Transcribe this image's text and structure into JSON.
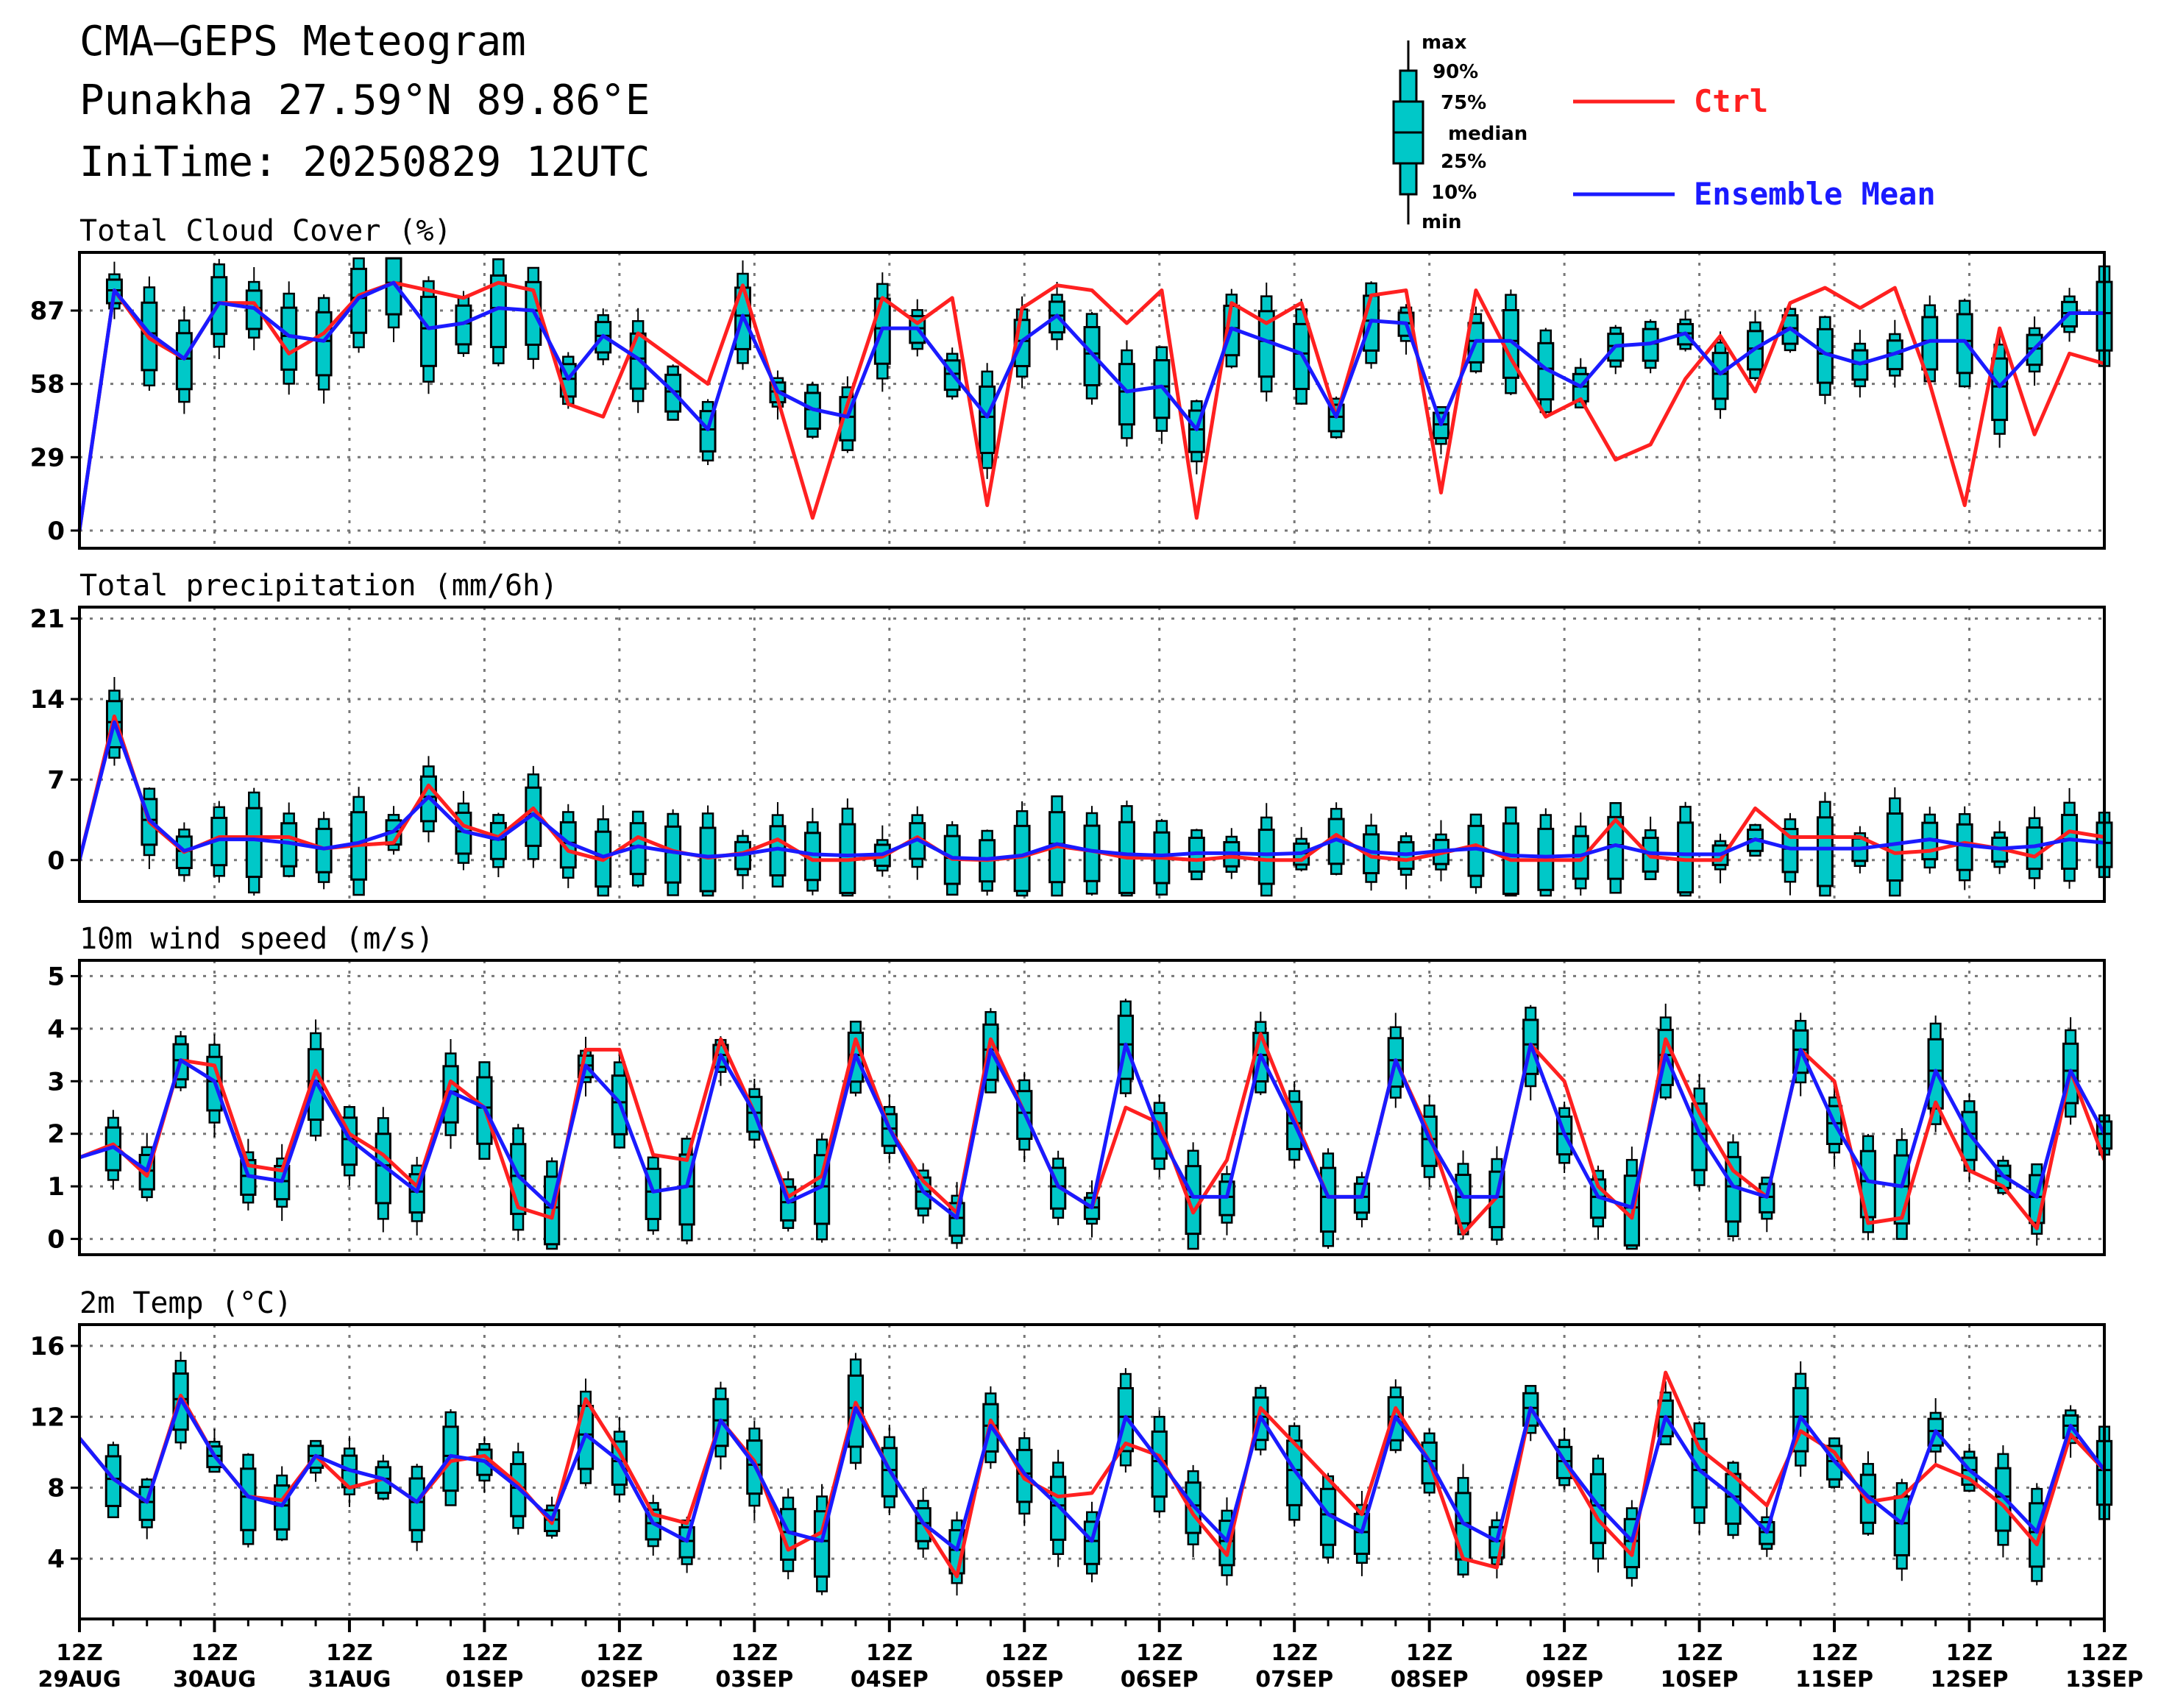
{
  "header": {
    "title": "CMA—GEPS Meteogram",
    "location": "Punakha 27.59°N 89.86°E",
    "init_time": "IniTime: 20250829 12UTC"
  },
  "legend": {
    "box_labels": [
      "max",
      "90%",
      "75%",
      "median",
      "25%",
      "10%",
      "min"
    ],
    "ctrl_label": "Ctrl",
    "mean_label": "Ensemble Mean",
    "ctrl_color": "#ff2020",
    "mean_color": "#1a1aff",
    "box_fill": "#00c8c8"
  },
  "x_axis": {
    "ticks": [
      {
        "top": "12Z",
        "bottom": "29AUG"
      },
      {
        "top": "12Z",
        "bottom": "30AUG"
      },
      {
        "top": "12Z",
        "bottom": "31AUG"
      },
      {
        "top": "12Z",
        "bottom": "01SEP"
      },
      {
        "top": "12Z",
        "bottom": "02SEP"
      },
      {
        "top": "12Z",
        "bottom": "03SEP"
      },
      {
        "top": "12Z",
        "bottom": "04SEP"
      },
      {
        "top": "12Z",
        "bottom": "05SEP"
      },
      {
        "top": "12Z",
        "bottom": "06SEP"
      },
      {
        "top": "12Z",
        "bottom": "07SEP"
      },
      {
        "top": "12Z",
        "bottom": "08SEP"
      },
      {
        "top": "12Z",
        "bottom": "09SEP"
      },
      {
        "top": "12Z",
        "bottom": "10SEP"
      },
      {
        "top": "12Z",
        "bottom": "11SEP"
      },
      {
        "top": "12Z",
        "bottom": "12SEP"
      },
      {
        "top": "12Z",
        "bottom": "13SEP"
      }
    ]
  },
  "chart_data": [
    {
      "type": "box-line",
      "title": "Total Cloud Cover (%)",
      "ylim": [
        -7,
        110
      ],
      "yticks": [
        0,
        29,
        58,
        87
      ],
      "ctrl": [
        0,
        95,
        76,
        68,
        90,
        90,
        70,
        78,
        93,
        98,
        95,
        92,
        98,
        95,
        50,
        45,
        78,
        68,
        58,
        97,
        52,
        5,
        50,
        92,
        82,
        92,
        10,
        88,
        97,
        95,
        82,
        95,
        5,
        90,
        82,
        90,
        45,
        93,
        95,
        15,
        95,
        68,
        45,
        52,
        28,
        34,
        60,
        77,
        55,
        90,
        96,
        88,
        96,
        58,
        10,
        80,
        38,
        70,
        66
      ],
      "ensemble_mean": [
        0,
        95,
        78,
        68,
        90,
        88,
        77,
        75,
        92,
        98,
        80,
        82,
        88,
        87,
        60,
        77,
        68,
        55,
        40,
        85,
        55,
        48,
        45,
        80,
        80,
        62,
        45,
        75,
        85,
        70,
        55,
        57,
        40,
        80,
        75,
        70,
        45,
        83,
        82,
        42,
        75,
        75,
        64,
        57,
        73,
        74,
        78,
        62,
        72,
        80,
        70,
        66,
        70,
        75,
        75,
        57,
        72,
        86,
        86
      ]
    },
    {
      "type": "box-line",
      "title": "Total precipitation (mm/6h)",
      "ylim": [
        -3.6,
        22
      ],
      "yticks": [
        0,
        7,
        14,
        21
      ],
      "ytick_labels": [
        "0",
        "7",
        "14",
        "21"
      ],
      "ctrl": [
        0,
        12.5,
        3.3,
        0.7,
        2.0,
        2.0,
        2.0,
        1.0,
        1.3,
        1.5,
        6.5,
        3.0,
        2.0,
        4.5,
        0.8,
        0.0,
        2.0,
        0.8,
        0.2,
        0.6,
        1.8,
        0.0,
        0.0,
        0.3,
        2.0,
        0.1,
        0.0,
        0.3,
        1.2,
        0.8,
        0.2,
        0.2,
        0.0,
        0.3,
        0.0,
        0.0,
        2.2,
        0.3,
        0.0,
        0.6,
        1.3,
        0.0,
        0.0,
        0.0,
        3.5,
        0.3,
        0.0,
        0.0,
        4.5,
        2.0,
        2.0,
        2.0,
        0.6,
        0.8,
        1.5,
        1.0,
        0.3,
        2.5,
        2.0
      ],
      "ensemble_mean": [
        0,
        12.0,
        3.5,
        0.8,
        1.8,
        1.8,
        1.5,
        1.0,
        1.5,
        2.5,
        5.5,
        2.5,
        1.8,
        4.0,
        1.5,
        0.3,
        1.2,
        0.7,
        0.3,
        0.5,
        1.0,
        0.5,
        0.4,
        0.5,
        1.8,
        0.2,
        0.1,
        0.4,
        1.4,
        0.8,
        0.5,
        0.4,
        0.6,
        0.6,
        0.5,
        0.6,
        1.8,
        0.7,
        0.5,
        0.8,
        1.0,
        0.4,
        0.3,
        0.4,
        1.3,
        0.6,
        0.5,
        0.5,
        1.8,
        1.0,
        1.0,
        1.0,
        1.4,
        1.8,
        1.3,
        1.0,
        1.2,
        1.8,
        1.5
      ]
    },
    {
      "type": "box-line",
      "title": "10m wind speed (m/s)",
      "ylim": [
        -0.3,
        5.3
      ],
      "yticks": [
        0,
        1,
        2,
        3,
        4,
        5
      ],
      "ctrl": [
        1.55,
        1.8,
        1.2,
        3.4,
        3.3,
        1.4,
        1.3,
        3.2,
        2.0,
        1.6,
        1.0,
        3.0,
        2.5,
        0.6,
        0.4,
        3.6,
        3.6,
        1.6,
        1.5,
        3.8,
        2.4,
        0.8,
        1.2,
        3.8,
        2.1,
        1.1,
        0.5,
        3.8,
        2.4,
        1.0,
        0.6,
        2.5,
        2.2,
        0.5,
        1.5,
        3.9,
        2.3,
        0.8,
        0.8,
        3.4,
        2.0,
        0.1,
        0.8,
        3.7,
        3.0,
        1.0,
        0.4,
        3.8,
        2.4,
        1.3,
        0.8,
        3.6,
        3.0,
        0.3,
        0.4,
        2.6,
        1.3,
        1.0,
        0.2,
        3.2,
        1.5
      ],
      "ensemble_mean": [
        1.55,
        1.75,
        1.3,
        3.4,
        3.0,
        1.2,
        1.1,
        3.0,
        1.9,
        1.4,
        0.9,
        2.8,
        2.5,
        1.2,
        0.6,
        3.3,
        2.6,
        0.9,
        1.0,
        3.5,
        2.4,
        0.7,
        1.0,
        3.5,
        2.1,
        0.9,
        0.4,
        3.6,
        2.4,
        1.0,
        0.6,
        3.7,
        2.0,
        0.8,
        0.8,
        3.5,
        2.2,
        0.8,
        0.8,
        3.4,
        1.9,
        0.8,
        0.8,
        3.7,
        2.0,
        0.8,
        0.6,
        3.5,
        2.0,
        1.0,
        0.8,
        3.6,
        2.2,
        1.1,
        1.0,
        3.2,
        2.0,
        1.2,
        0.8,
        3.2,
        2.0
      ]
    },
    {
      "type": "box-line",
      "title": "2m Temp (°C)",
      "ylim": [
        0.6,
        17.2
      ],
      "yticks": [
        4,
        8,
        12,
        16
      ],
      "ctrl": [
        10.8,
        8.5,
        7.2,
        13.2,
        9.8,
        7.5,
        7.3,
        9.8,
        8.0,
        8.5,
        7.2,
        9.5,
        9.8,
        8.2,
        6.0,
        13.0,
        10.0,
        6.5,
        6.0,
        11.8,
        9.5,
        4.5,
        5.5,
        12.8,
        9.0,
        6.0,
        3.0,
        11.8,
        8.5,
        7.5,
        7.7,
        10.5,
        9.8,
        6.5,
        4.2,
        12.5,
        10.5,
        8.5,
        6.5,
        12.5,
        9.5,
        4.0,
        3.5,
        12.5,
        9.5,
        6.2,
        4.2,
        14.5,
        10.2,
        8.7,
        7.0,
        11.2,
        10.0,
        7.2,
        7.5,
        9.3,
        8.5,
        7.0,
        4.8,
        11.0,
        9.0
      ],
      "ensemble_mean": [
        10.8,
        8.5,
        7.2,
        13.0,
        9.8,
        7.5,
        7.0,
        9.8,
        9.0,
        8.5,
        7.2,
        9.8,
        9.5,
        8.0,
        6.2,
        11.0,
        9.5,
        6.0,
        5.0,
        11.8,
        9.3,
        5.5,
        5.0,
        12.5,
        9.0,
        6.0,
        4.5,
        11.5,
        8.8,
        7.0,
        5.0,
        12.0,
        9.5,
        7.0,
        5.0,
        12.0,
        9.0,
        6.5,
        5.5,
        12.0,
        9.5,
        6.0,
        5.0,
        12.5,
        9.5,
        7.0,
        5.0,
        12.0,
        9.0,
        7.5,
        5.5,
        12.0,
        9.5,
        7.5,
        6.0,
        11.2,
        9.0,
        7.5,
        5.5,
        11.5,
        9.0
      ]
    }
  ]
}
